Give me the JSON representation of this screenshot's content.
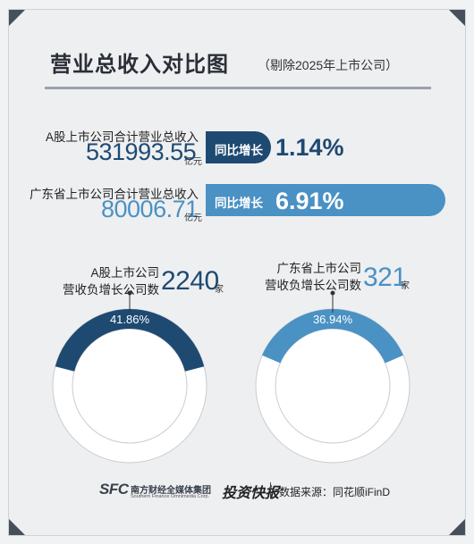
{
  "title": "营业总收入对比图",
  "subtitle": "（剔除2025年上市公司）",
  "metrics": [
    {
      "label": "A股上市公司合计营业总收入",
      "value": "531993.55",
      "unit": "亿元",
      "tag": "同比增长",
      "growth": "1.14%",
      "growth_pct": 1.14,
      "color": "#1e4a72"
    },
    {
      "label": "广东省上市公司合计营业总收入",
      "value": "80006.71",
      "unit": "亿元",
      "tag": "同比增长",
      "growth": "6.91%",
      "growth_pct": 6.91,
      "color": "#4a91c4"
    }
  ],
  "donuts": [
    {
      "label_line1": "A股上市公司",
      "label_line2": "营收负增长公司数",
      "count": "2240",
      "unit": "家",
      "percent_label": "41.86%",
      "percent": 41.86,
      "color": "#1e4a72"
    },
    {
      "label_line1": "广东省上市公司",
      "label_line2": "营收负增长公司数",
      "count": "321",
      "unit": "家",
      "percent_label": "36.94%",
      "percent": 36.94,
      "color": "#4a91c4"
    }
  ],
  "chart_data": [
    {
      "type": "bar",
      "categories": [
        "A股上市公司合计营业总收入",
        "广东省上市公司合计营业总收入"
      ],
      "series": [
        {
          "name": "同比增长",
          "values": [
            1.14,
            6.91
          ]
        }
      ],
      "totals": [
        531993.55,
        80006.71
      ],
      "totals_unit": "亿元"
    },
    {
      "type": "pie",
      "categories": [
        "A股上市公司 营收负增长公司数",
        "广东省上市公司 营收负增长公司数"
      ],
      "values": [
        41.86,
        36.94
      ],
      "counts": [
        2240,
        321
      ],
      "counts_unit": "家"
    }
  ],
  "footer": {
    "sfc": "SFC",
    "group_name": "南方财经全媒体集团",
    "group_name_en": "Southern Finance Omnimedia Corp.",
    "brand": "投资快报",
    "source": "数据来源：同花顺iFinD"
  }
}
